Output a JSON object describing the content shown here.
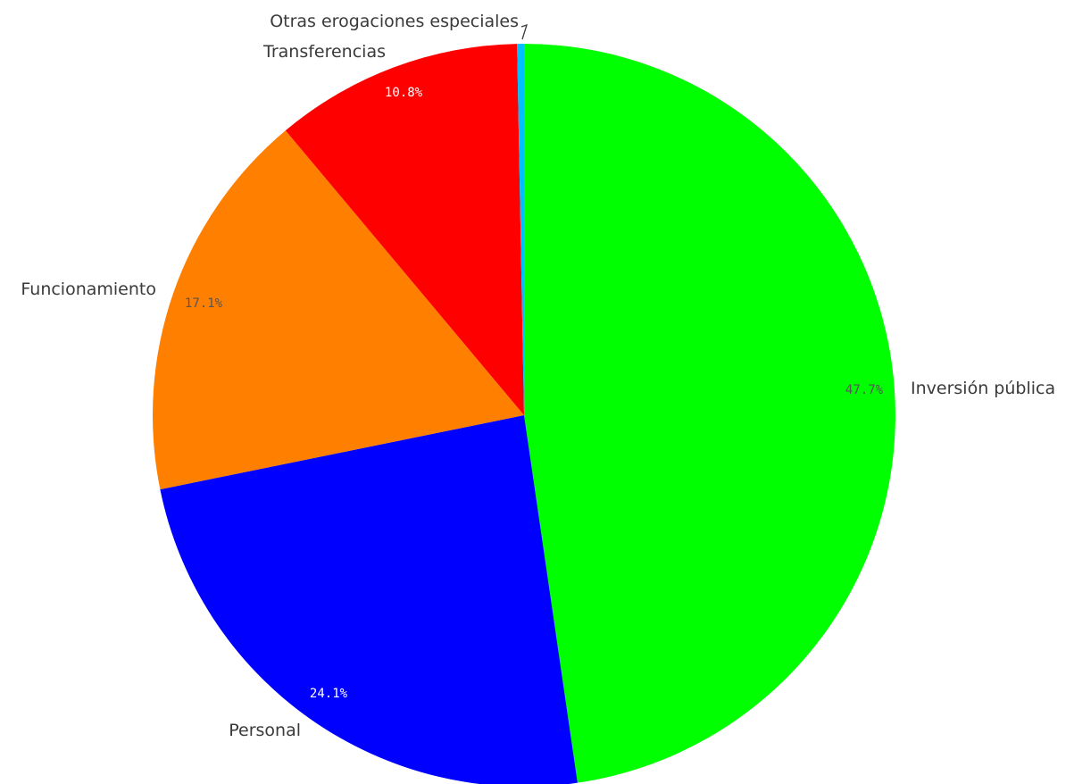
{
  "chart_data": {
    "type": "pie",
    "title": "",
    "slices": [
      {
        "label": "Inversión pública",
        "value": 47.7,
        "value_label": "47.7%",
        "color": "#00ff00",
        "value_label_color": "#555555"
      },
      {
        "label": "Personal",
        "value": 24.1,
        "value_label": "24.1%",
        "color": "#0000ff",
        "value_label_color": "#ffffff"
      },
      {
        "label": "Funcionamiento",
        "value": 17.1,
        "value_label": "17.1%",
        "color": "#ff7f00",
        "value_label_color": "#555555"
      },
      {
        "label": "Transferencias",
        "value": 10.8,
        "value_label": "10.8%",
        "color": "#ff0000",
        "value_label_color": "#ffffff"
      },
      {
        "label": "Otras erogaciones especiales",
        "value": 0.3,
        "value_label": "",
        "color": "#00bfff",
        "value_label_color": "#555555"
      }
    ],
    "start": "12 o'clock",
    "direction": "clockwise",
    "legend": "none"
  }
}
